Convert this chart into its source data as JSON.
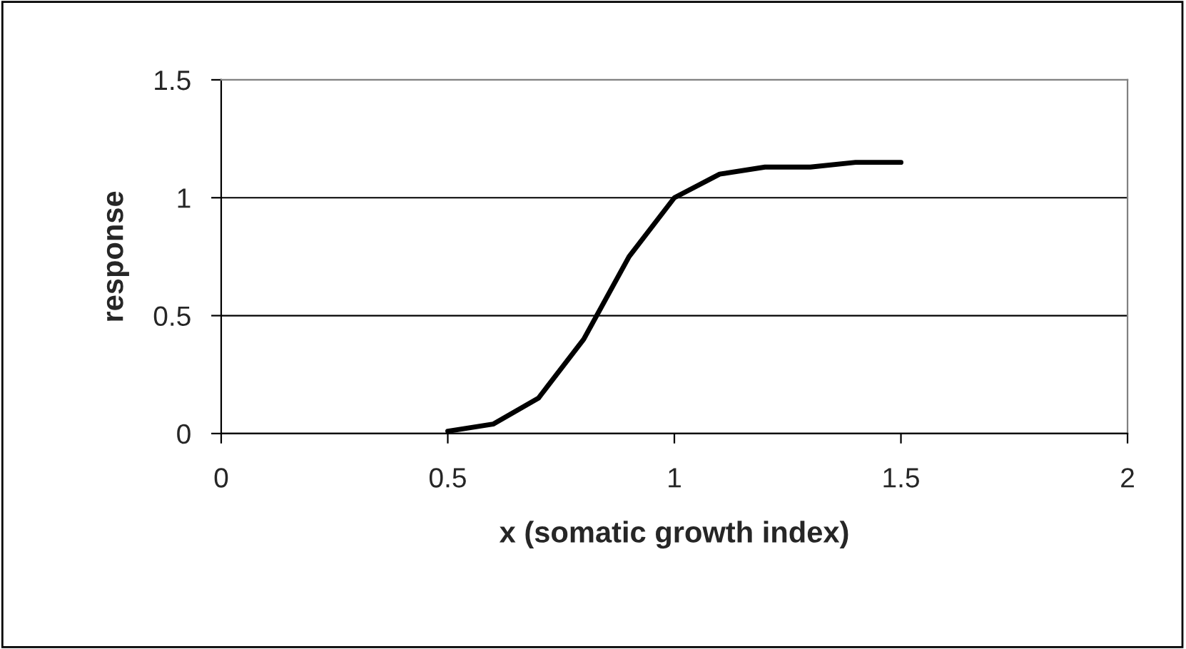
{
  "chart_data": {
    "type": "line",
    "xlabel": "x (somatic growth index)",
    "ylabel": "response",
    "series": [
      {
        "color": "#000000",
        "x": [
          0.5,
          0.6,
          0.7,
          0.8,
          0.9,
          1.0,
          1.1,
          1.2,
          1.3,
          1.4,
          1.5
        ],
        "values": [
          0.01,
          0.04,
          0.15,
          0.4,
          0.75,
          1.0,
          1.1,
          1.13,
          1.13,
          1.15,
          1.15
        ]
      }
    ],
    "xlim": [
      0,
      2
    ],
    "xticks": [
      0,
      0.5,
      1,
      1.5,
      2
    ],
    "ylim": [
      0,
      1.5
    ],
    "yticks": [
      0,
      0.5,
      1,
      1.5
    ],
    "grid": "y",
    "marker": "none",
    "line_style": "solid"
  }
}
